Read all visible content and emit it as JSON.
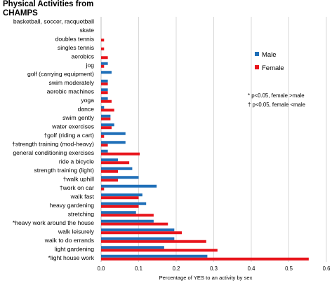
{
  "chart_data": {
    "type": "bar",
    "orientation": "horizontal",
    "title": "Physical Activities from CHAMPS",
    "xlabel": "Percentage of YES to an activity by sex",
    "ylabel": "",
    "xlim": [
      0,
      0.6
    ],
    "xticks": [
      "0.0",
      "0.1",
      "0.2",
      "0.3",
      "0.4",
      "0.5",
      "0.6"
    ],
    "grid": "vertical",
    "legend_position": "top-right",
    "categories": [
      "basketball, soccer, racquetball",
      "skate",
      "doubles tennis",
      "singles tennis",
      "aerobics",
      "jog",
      "golf (carrying equipment)",
      "swim moderately",
      "aerobic machines",
      "yoga",
      "dance",
      "swim gently",
      "water exercises",
      "†golf (riding a cart)",
      "†strength training (mod-heavy)",
      "general conditioning exercises",
      "ride a bicycle",
      "strength training (light)",
      "†walk uphill",
      "†work on car",
      "walk fast",
      "heavy gardening",
      "stretching",
      "*heavy work around the house",
      "walk leisurely",
      "walk to do errands",
      "light gardening",
      "*light house work"
    ],
    "series": [
      {
        "name": "Male",
        "color": "#1f6fb8",
        "values": [
          0.0,
          0.0,
          0.0,
          0.0,
          0.0,
          0.018,
          0.028,
          0.018,
          0.018,
          0.018,
          0.008,
          0.025,
          0.035,
          0.065,
          0.065,
          0.018,
          0.045,
          0.083,
          0.1,
          0.148,
          0.11,
          0.12,
          0.093,
          0.14,
          0.195,
          0.195,
          0.168,
          0.283
        ]
      },
      {
        "name": "Female",
        "color": "#e8141b",
        "values": [
          0.0,
          0.0,
          0.008,
          0.008,
          0.018,
          0.008,
          0.0,
          0.018,
          0.018,
          0.028,
          0.035,
          0.025,
          0.028,
          0.008,
          0.018,
          0.103,
          0.075,
          0.045,
          0.045,
          0.008,
          0.1,
          0.1,
          0.14,
          0.178,
          0.215,
          0.28,
          0.31,
          0.553
        ]
      }
    ],
    "annotations": [
      "* p<0.05, female >male",
      "† p<0.05, female <male"
    ]
  }
}
